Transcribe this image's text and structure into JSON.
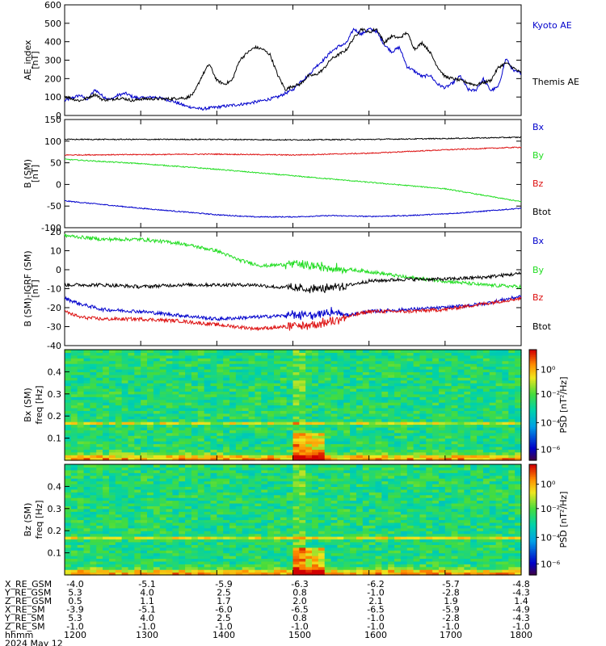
{
  "colors": {
    "black": "#000000",
    "blue": "#0000cc",
    "green": "#22dd22",
    "red": "#dd1111"
  },
  "chart_data": [
    {
      "type": "line",
      "ylabel_lines": [
        "AE_index",
        "[nT]"
      ],
      "ylim": [
        0,
        600
      ],
      "yticks": [
        0,
        100,
        200,
        300,
        400,
        500,
        600
      ],
      "x_range_hours": [
        12,
        18
      ],
      "series": [
        {
          "name": "Kyoto AE",
          "color": "blue",
          "x": [
            12.0,
            12.1,
            12.2,
            12.3,
            12.4,
            12.5,
            12.6,
            12.7,
            12.8,
            12.9,
            13.0,
            13.2,
            13.4,
            13.6,
            13.8,
            14.0,
            14.2,
            14.4,
            14.6,
            14.8,
            15.0,
            15.1,
            15.2,
            15.3,
            15.4,
            15.5,
            15.6,
            15.7,
            15.8,
            15.9,
            16.0,
            16.1,
            16.2,
            16.3,
            16.4,
            16.5,
            16.6,
            16.7,
            16.8,
            16.9,
            17.0,
            17.1,
            17.2,
            17.3,
            17.4,
            17.5,
            17.6,
            17.7,
            17.8,
            17.9,
            18.0
          ],
          "y": [
            80,
            95,
            110,
            85,
            140,
            105,
            85,
            110,
            120,
            100,
            95,
            100,
            80,
            50,
            35,
            45,
            55,
            65,
            80,
            100,
            140,
            185,
            215,
            265,
            300,
            345,
            375,
            390,
            470,
            440,
            470,
            455,
            385,
            345,
            370,
            265,
            240,
            210,
            220,
            170,
            150,
            175,
            215,
            140,
            135,
            200,
            135,
            155,
            310,
            240,
            230
          ]
        },
        {
          "name": "Themis AE",
          "color": "black",
          "x": [
            12.0,
            12.1,
            12.2,
            12.3,
            12.4,
            12.5,
            12.6,
            12.7,
            12.8,
            12.9,
            13.0,
            13.2,
            13.4,
            13.5,
            13.6,
            13.7,
            13.8,
            13.9,
            14.0,
            14.1,
            14.2,
            14.3,
            14.4,
            14.5,
            14.6,
            14.7,
            14.8,
            14.9,
            15.0,
            15.1,
            15.2,
            15.3,
            15.4,
            15.5,
            15.6,
            15.7,
            15.8,
            15.9,
            16.0,
            16.1,
            16.2,
            16.3,
            16.4,
            16.5,
            16.6,
            16.7,
            16.8,
            16.9,
            17.0,
            17.2,
            17.4,
            17.6,
            17.7,
            17.8,
            18.0
          ],
          "y": [
            105,
            90,
            80,
            95,
            115,
            85,
            85,
            95,
            90,
            80,
            90,
            90,
            90,
            95,
            95,
            120,
            210,
            280,
            190,
            170,
            190,
            300,
            340,
            370,
            360,
            330,
            220,
            140,
            160,
            170,
            215,
            220,
            250,
            305,
            330,
            355,
            420,
            470,
            450,
            470,
            395,
            430,
            420,
            450,
            360,
            395,
            345,
            265,
            210,
            190,
            165,
            190,
            260,
            285,
            230
          ]
        }
      ]
    },
    {
      "type": "line",
      "ylabel_lines": [
        "B (SM)",
        "[nT]"
      ],
      "ylim": [
        -100,
        150
      ],
      "yticks": [
        -100,
        -50,
        0,
        50,
        100,
        150
      ],
      "x_range_hours": [
        12,
        18
      ],
      "series": [
        {
          "name": "Bx",
          "color": "blue",
          "x": [
            12,
            13,
            14,
            14.5,
            15,
            15.5,
            16,
            16.5,
            17,
            17.5,
            18
          ],
          "y": [
            -38,
            -55,
            -70,
            -75,
            -75,
            -72,
            -74,
            -72,
            -68,
            -62,
            -55
          ]
        },
        {
          "name": "By",
          "color": "green",
          "x": [
            12,
            13,
            14,
            15,
            16,
            17,
            18
          ],
          "y": [
            58,
            48,
            35,
            20,
            5,
            -10,
            -40
          ]
        },
        {
          "name": "Bz",
          "color": "red",
          "x": [
            12,
            13,
            14,
            15,
            15.5,
            16,
            17,
            18
          ],
          "y": [
            68,
            69,
            70,
            68,
            70,
            72,
            80,
            86
          ]
        },
        {
          "name": "Btot",
          "color": "black",
          "x": [
            12,
            13,
            14,
            15,
            16,
            17,
            18
          ],
          "y": [
            104,
            104,
            104,
            103,
            104,
            106,
            109
          ]
        }
      ]
    },
    {
      "type": "line",
      "ylabel_lines": [
        "B (SM)-IGRF (SM)",
        "[nT]"
      ],
      "ylim": [
        -40,
        20
      ],
      "yticks": [
        -40,
        -30,
        -20,
        -10,
        0,
        10,
        20
      ],
      "x_range_hours": [
        12,
        18
      ],
      "series": [
        {
          "name": "Bx",
          "color": "blue",
          "x": [
            12,
            12.2,
            12.5,
            13,
            13.5,
            14,
            14.5,
            15,
            15.3,
            15.5,
            15.7,
            16,
            16.5,
            17,
            17.5,
            18
          ],
          "y": [
            -15,
            -18,
            -21,
            -22,
            -24,
            -26,
            -25,
            -24,
            -24,
            -22,
            -24,
            -22,
            -21,
            -20,
            -18,
            -14
          ]
        },
        {
          "name": "By",
          "color": "green",
          "x": [
            12,
            12.5,
            13,
            13.5,
            14,
            14.3,
            14.6,
            15,
            15.5,
            16,
            16.5,
            17,
            17.5,
            18
          ],
          "y": [
            18,
            16,
            16,
            14,
            10,
            5,
            2,
            3,
            1,
            -1,
            -4,
            -6,
            -8,
            -9
          ]
        },
        {
          "name": "Bz",
          "color": "red",
          "x": [
            12,
            12.2,
            12.5,
            13,
            13.5,
            14,
            14.5,
            15,
            15.3,
            15.5,
            16,
            16.5,
            17,
            17.5,
            18
          ],
          "y": [
            -22,
            -25,
            -26,
            -26,
            -27,
            -29,
            -31,
            -30,
            -29,
            -27,
            -22,
            -22,
            -21,
            -18,
            -15
          ]
        },
        {
          "name": "Btot",
          "color": "black",
          "x": [
            12,
            12.5,
            13,
            13.5,
            14,
            14.5,
            15,
            15.5,
            16,
            16.5,
            17,
            17.5,
            18
          ],
          "y": [
            -8,
            -8,
            -9,
            -8,
            -8,
            -8,
            -10,
            -10,
            -6,
            -5,
            -5,
            -4,
            -2
          ]
        }
      ]
    },
    {
      "type": "heatmap",
      "ylabel_lines": [
        "Bx (SM)",
        "freq [Hz]"
      ],
      "yticks": [
        0.1,
        0.2,
        0.3,
        0.4
      ],
      "ylim": [
        0,
        0.5
      ],
      "colorbar_label": "PSD [nT²/Hz]",
      "colorbar_ticks": [
        "10⁰",
        "10⁻²",
        "10⁻⁴",
        "10⁻⁶"
      ]
    },
    {
      "type": "heatmap",
      "ylabel_lines": [
        "Bz (SM)",
        "freq [Hz]"
      ],
      "yticks": [
        0.1,
        0.2,
        0.3,
        0.4
      ],
      "ylim": [
        0,
        0.5
      ],
      "colorbar_label": "PSD [nT²/Hz]",
      "colorbar_ticks": [
        "10⁰",
        "10⁻²",
        "10⁻⁴",
        "10⁻⁶"
      ]
    }
  ],
  "x_axis": {
    "rows": [
      {
        "label": "X_RE_GSM",
        "values": [
          "-4.0",
          "-5.1",
          "-5.9",
          "-6.3",
          "-6.2",
          "-5.7",
          "-4.8"
        ]
      },
      {
        "label": "Y_RE_GSM",
        "values": [
          "5.3",
          "4.0",
          "2.5",
          "0.8",
          "-1.0",
          "-2.8",
          "-4.3"
        ]
      },
      {
        "label": "Z_RE_GSM",
        "values": [
          "0.5",
          "1.1",
          "1.7",
          "2.0",
          "2.1",
          "1.9",
          "1.4"
        ]
      },
      {
        "label": "X_RE_SM",
        "values": [
          "-3.9",
          "-5.1",
          "-6.0",
          "-6.5",
          "-6.5",
          "-5.9",
          "-4.9"
        ]
      },
      {
        "label": "Y_RE_SM",
        "values": [
          "5.3",
          "4.0",
          "2.5",
          "0.8",
          "-1.0",
          "-2.8",
          "-4.3"
        ]
      },
      {
        "label": "Z_RE_SM",
        "values": [
          "-1.0",
          "-1.0",
          "-1.0",
          "-1.0",
          "-1.0",
          "-1.0",
          "-1.0"
        ]
      },
      {
        "label": "hhmm",
        "values": [
          "1200",
          "1300",
          "1400",
          "1500",
          "1600",
          "1700",
          "1800"
        ]
      }
    ],
    "date": "2024 May 12"
  }
}
